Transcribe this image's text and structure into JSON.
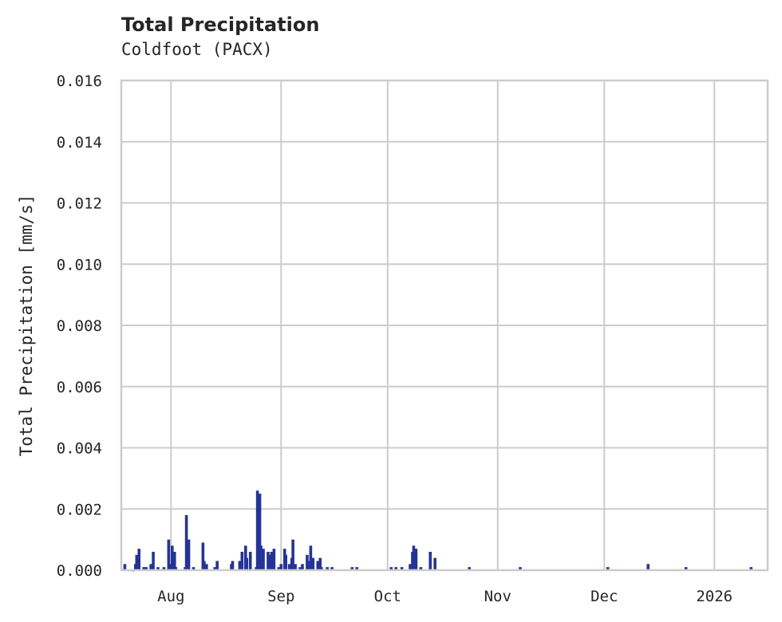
{
  "header": {
    "title": "Total Precipitation",
    "subtitle": "Coldfoot (PACX)"
  },
  "colors": {
    "bar": "#253494",
    "grid": "#cccccc",
    "text": "#262626"
  },
  "chart_data": {
    "type": "area",
    "title": "Total Precipitation",
    "subtitle": "Coldfoot (PACX)",
    "xlabel": "",
    "ylabel": "Total Precipitation [mm/s]",
    "ylim": [
      0,
      0.016
    ],
    "yticks": [
      "0.000",
      "0.002",
      "0.004",
      "0.006",
      "0.008",
      "0.010",
      "0.012",
      "0.014",
      "0.016"
    ],
    "xticks": [
      "Aug",
      "Sep",
      "Oct",
      "Nov",
      "Dec",
      "2026"
    ],
    "xlim": [
      "2025-07-18",
      "2026-01-16"
    ],
    "grid": true,
    "legend": "none",
    "series": [
      {
        "name": "Total Precipitation",
        "points": [
          {
            "x": "2025-07-19",
            "y": 0.0002
          },
          {
            "x": "2025-07-21",
            "y": 0.0
          },
          {
            "x": "2025-07-22",
            "y": 0.0002
          },
          {
            "x": "2025-07-22",
            "y": 0.0005
          },
          {
            "x": "2025-07-23",
            "y": 0.0007
          },
          {
            "x": "2025-07-24",
            "y": 0.0001
          },
          {
            "x": "2025-07-25",
            "y": 0.0001
          },
          {
            "x": "2025-07-26",
            "y": 0.0002
          },
          {
            "x": "2025-07-27",
            "y": 0.0006
          },
          {
            "x": "2025-07-28",
            "y": 0.0001
          },
          {
            "x": "2025-07-30",
            "y": 0.0001
          },
          {
            "x": "2025-07-31",
            "y": 0.001
          },
          {
            "x": "2025-08-01",
            "y": 0.0002
          },
          {
            "x": "2025-08-01",
            "y": 0.0008
          },
          {
            "x": "2025-08-02",
            "y": 0.0006
          },
          {
            "x": "2025-08-02",
            "y": 0.0001
          },
          {
            "x": "2025-08-05",
            "y": 0.0001
          },
          {
            "x": "2025-08-05",
            "y": 0.0018
          },
          {
            "x": "2025-08-06",
            "y": 0.001
          },
          {
            "x": "2025-08-07",
            "y": 0.0001
          },
          {
            "x": "2025-08-10",
            "y": 0.0009
          },
          {
            "x": "2025-08-10",
            "y": 0.0003
          },
          {
            "x": "2025-08-11",
            "y": 0.0002
          },
          {
            "x": "2025-08-13",
            "y": 0.0001
          },
          {
            "x": "2025-08-14",
            "y": 0.0003
          },
          {
            "x": "2025-08-18",
            "y": 0.0003
          },
          {
            "x": "2025-08-18",
            "y": 0.0002
          },
          {
            "x": "2025-08-20",
            "y": 0.0003
          },
          {
            "x": "2025-08-21",
            "y": 0.0006
          },
          {
            "x": "2025-08-22",
            "y": 0.0004
          },
          {
            "x": "2025-08-22",
            "y": 0.0008
          },
          {
            "x": "2025-08-23",
            "y": 0.0006
          },
          {
            "x": "2025-08-25",
            "y": 0.0001
          },
          {
            "x": "2025-08-25",
            "y": 0.0026
          },
          {
            "x": "2025-08-26",
            "y": 0.0025
          },
          {
            "x": "2025-08-26",
            "y": 0.0008
          },
          {
            "x": "2025-08-27",
            "y": 0.0007
          },
          {
            "x": "2025-08-28",
            "y": 0.0006
          },
          {
            "x": "2025-08-29",
            "y": 0.0005
          },
          {
            "x": "2025-08-29",
            "y": 0.0006
          },
          {
            "x": "2025-08-30",
            "y": 0.0007
          },
          {
            "x": "2025-08-31",
            "y": 0.0001
          },
          {
            "x": "2025-09-01",
            "y": 0.0002
          },
          {
            "x": "2025-09-02",
            "y": 0.0005
          },
          {
            "x": "2025-09-02",
            "y": 0.0007
          },
          {
            "x": "2025-09-03",
            "y": 0.0002
          },
          {
            "x": "2025-09-04",
            "y": 0.0004
          },
          {
            "x": "2025-09-04",
            "y": 0.001
          },
          {
            "x": "2025-09-05",
            "y": 0.0002
          },
          {
            "x": "2025-09-06",
            "y": 0.0001
          },
          {
            "x": "2025-09-07",
            "y": 0.0002
          },
          {
            "x": "2025-09-08",
            "y": 0.0005
          },
          {
            "x": "2025-09-09",
            "y": 0.0003
          },
          {
            "x": "2025-09-09",
            "y": 0.0008
          },
          {
            "x": "2025-09-10",
            "y": 0.0004
          },
          {
            "x": "2025-09-11",
            "y": 0.0003
          },
          {
            "x": "2025-09-12",
            "y": 0.0004
          },
          {
            "x": "2025-09-12",
            "y": 0.0001
          },
          {
            "x": "2025-09-14",
            "y": 0.0001
          },
          {
            "x": "2025-09-15",
            "y": 0.0001
          },
          {
            "x": "2025-09-21",
            "y": 0.0001
          },
          {
            "x": "2025-09-22",
            "y": 0.0001
          },
          {
            "x": "2025-10-02",
            "y": 0.0001
          },
          {
            "x": "2025-10-03",
            "y": 0.0001
          },
          {
            "x": "2025-10-05",
            "y": 0.0001
          },
          {
            "x": "2025-10-07",
            "y": 0.0002
          },
          {
            "x": "2025-10-08",
            "y": 0.0006
          },
          {
            "x": "2025-10-08",
            "y": 0.0008
          },
          {
            "x": "2025-10-09",
            "y": 0.0007
          },
          {
            "x": "2025-10-10",
            "y": 0.0001
          },
          {
            "x": "2025-10-13",
            "y": 0.0006
          },
          {
            "x": "2025-10-14",
            "y": 0.0004
          },
          {
            "x": "2025-10-24",
            "y": 0.0001
          },
          {
            "x": "2025-11-07",
            "y": 0.0001
          },
          {
            "x": "2025-12-02",
            "y": 0.0001
          },
          {
            "x": "2025-12-13",
            "y": 0.0002
          },
          {
            "x": "2025-12-24",
            "y": 0.0001
          },
          {
            "x": "2026-01-11",
            "y": 0.0001
          }
        ]
      }
    ]
  }
}
